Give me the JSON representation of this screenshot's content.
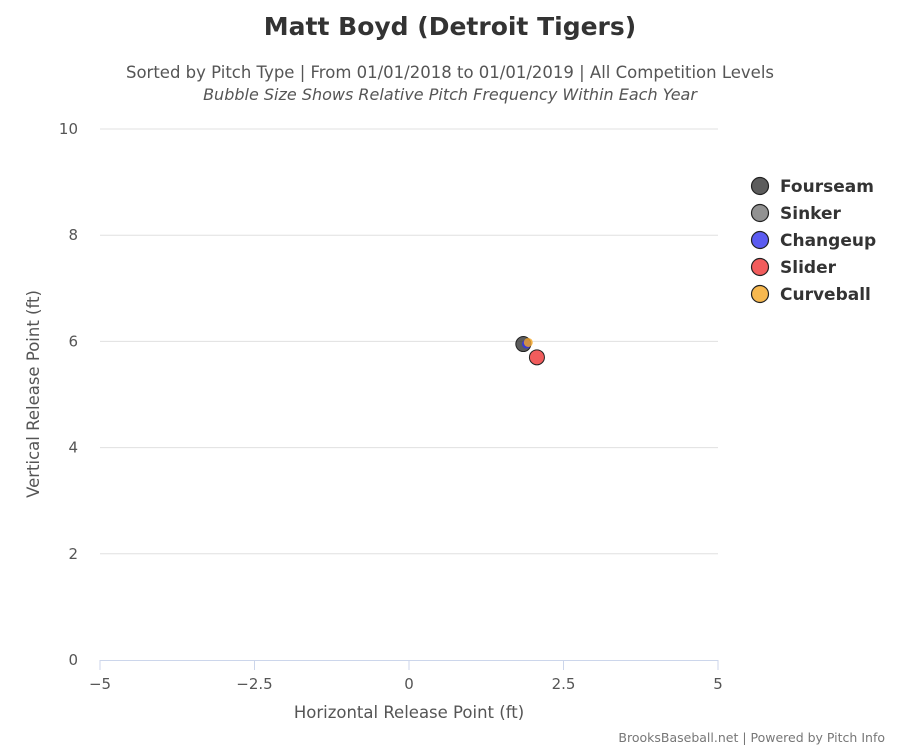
{
  "chart_data": {
    "type": "scatter",
    "title": "Matt Boyd (Detroit Tigers)",
    "subtitle": "Sorted by Pitch Type | From 01/01/2018 to 01/01/2019 | All Competition Levels",
    "subtitle2": "Bubble Size Shows Relative Pitch Frequency Within Each Year",
    "xlabel": "Horizontal Release Point (ft)",
    "ylabel": "Vertical Release Point (ft)",
    "xlim": [
      -5,
      5
    ],
    "ylim": [
      0,
      10
    ],
    "xticks": [
      -5,
      -2.5,
      0,
      2.5,
      5
    ],
    "xtick_labels": [
      "−5",
      "−2.5",
      "0",
      "2.5",
      "5"
    ],
    "yticks": [
      0,
      2,
      4,
      6,
      8,
      10
    ],
    "ytick_labels": [
      "0",
      "2",
      "4",
      "6",
      "8",
      "10"
    ],
    "grid": "horizontal",
    "legend_position": "right",
    "series": [
      {
        "name": "Fourseam",
        "color": "#333333",
        "x": 1.85,
        "y": 5.95,
        "size": "large"
      },
      {
        "name": "Sinker",
        "color": "#777777",
        "x": null,
        "y": null,
        "size": null
      },
      {
        "name": "Changeup",
        "color": "#3333ee",
        "x": 1.9,
        "y": 5.95,
        "size": "small"
      },
      {
        "name": "Slider",
        "color": "#ee3333",
        "x": 2.07,
        "y": 5.7,
        "size": "large"
      },
      {
        "name": "Curveball",
        "color": "#f5a623",
        "x": 1.93,
        "y": 5.98,
        "size": "small"
      }
    ],
    "credits": "BrooksBaseball.net | Powered by Pitch Info"
  }
}
